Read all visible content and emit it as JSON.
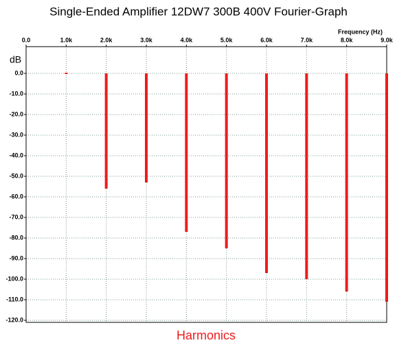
{
  "chart_data": {
    "type": "bar",
    "title": "Single-Ended Amplifier 12DW7 300B 400V Fourier-Graph",
    "x_axis_label": "Frequency   (Hz)",
    "y_axis_label": "dB",
    "x_label": "Harmonics",
    "x": [
      1000,
      2000,
      3000,
      4000,
      5000,
      6000,
      7000,
      8000,
      9000
    ],
    "values": [
      0,
      -56,
      -53,
      -77,
      -85,
      -97,
      -100,
      -106,
      -111
    ],
    "color": "#ee1c1c",
    "grid": true,
    "xlim": [
      0,
      9000
    ],
    "ylim": [
      -121,
      13
    ],
    "xticks": [
      {
        "value": 0,
        "label": "0.0"
      },
      {
        "value": 1000,
        "label": "1.0k"
      },
      {
        "value": 2000,
        "label": "2.0k"
      },
      {
        "value": 3000,
        "label": "3.0k"
      },
      {
        "value": 4000,
        "label": "4.0k"
      },
      {
        "value": 5000,
        "label": "5.0k"
      },
      {
        "value": 6000,
        "label": "6.0k"
      },
      {
        "value": 7000,
        "label": "7.0k"
      },
      {
        "value": 8000,
        "label": "8.0k"
      },
      {
        "value": 9000,
        "label": "9.0k"
      }
    ],
    "yticks": [
      {
        "value": 0,
        "label": "0.0"
      },
      {
        "value": -10,
        "label": "-10.0"
      },
      {
        "value": -20,
        "label": "-20.0"
      },
      {
        "value": -30,
        "label": "-30.0"
      },
      {
        "value": -40,
        "label": "-40.0"
      },
      {
        "value": -50,
        "label": "-50.0"
      },
      {
        "value": -60,
        "label": "-60.0"
      },
      {
        "value": -70,
        "label": "-70.0"
      },
      {
        "value": -80,
        "label": "-80.0"
      },
      {
        "value": -90,
        "label": "-90.0"
      },
      {
        "value": -100,
        "label": "-100.0"
      },
      {
        "value": -110,
        "label": "-110.0"
      },
      {
        "value": -120,
        "label": "-120.0"
      }
    ]
  }
}
